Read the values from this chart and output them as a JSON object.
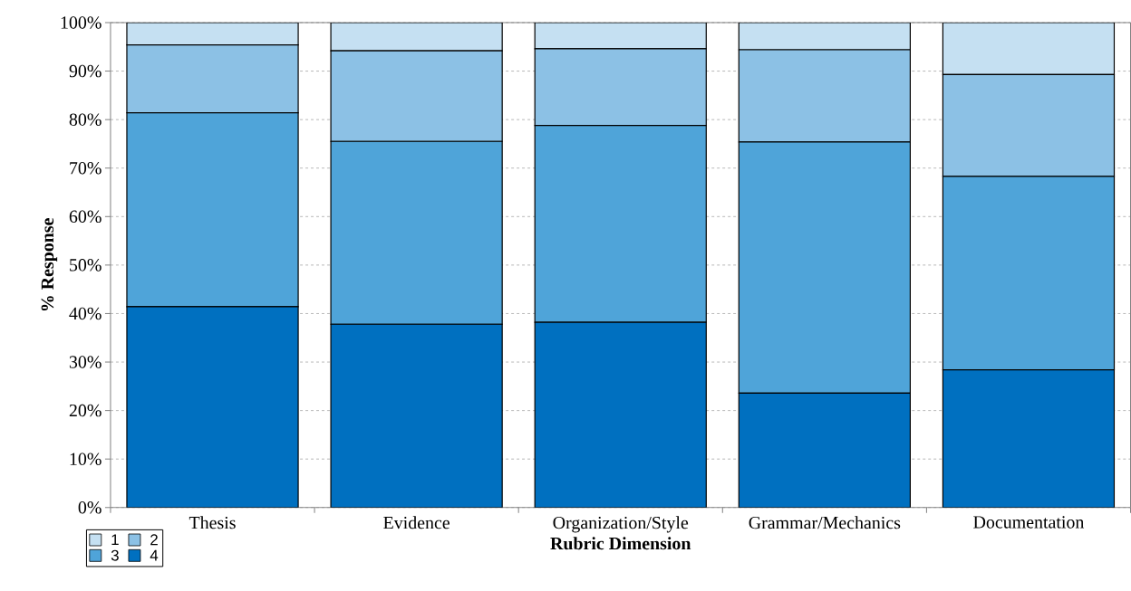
{
  "chart_data": {
    "type": "bar",
    "stacked": true,
    "xlabel": "Rubric Dimension",
    "ylabel": "% Response",
    "categories": [
      "Thesis",
      "Evidence",
      "Organization/Style",
      "Grammar/Mechanics",
      "Documentation"
    ],
    "series": [
      {
        "name": "4",
        "color": "#0070c0",
        "values": [
          41.4,
          37.8,
          38.2,
          23.6,
          28.4
        ]
      },
      {
        "name": "3",
        "color": "#4fa4d9",
        "values": [
          40.0,
          37.7,
          40.6,
          51.8,
          39.9
        ]
      },
      {
        "name": "2",
        "color": "#8cc1e5",
        "values": [
          14.0,
          18.7,
          15.8,
          19.0,
          21.0
        ]
      },
      {
        "name": "1",
        "color": "#c5e0f2",
        "values": [
          4.6,
          5.8,
          5.4,
          5.6,
          10.7
        ]
      }
    ],
    "ylim": [
      0,
      100
    ],
    "yticks": [
      {
        "value": 0,
        "label": "0%"
      },
      {
        "value": 10,
        "label": "10%"
      },
      {
        "value": 20,
        "label": "20%"
      },
      {
        "value": 30,
        "label": "30%"
      },
      {
        "value": 40,
        "label": "40%"
      },
      {
        "value": 50,
        "label": "50%"
      },
      {
        "value": 60,
        "label": "60%"
      },
      {
        "value": 70,
        "label": "70%"
      },
      {
        "value": 80,
        "label": "80%"
      },
      {
        "value": 90,
        "label": "90%"
      },
      {
        "value": 100,
        "label": "100%"
      }
    ],
    "grid": "y",
    "legend": "bottom left"
  }
}
